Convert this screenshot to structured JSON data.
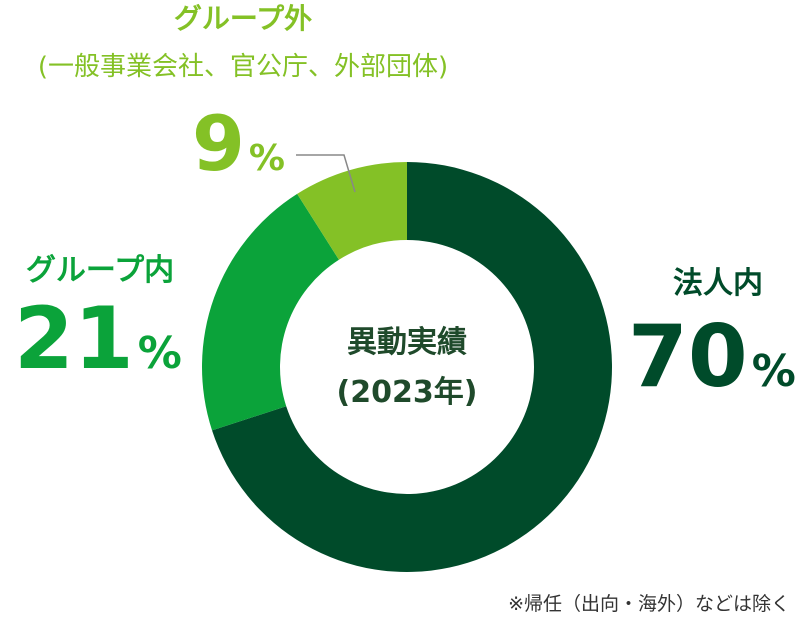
{
  "chart_data": {
    "type": "pie",
    "title": "異動実績",
    "subtitle": "(2023年)",
    "slices": [
      {
        "name": "法人内",
        "value": 70,
        "color": "#004b2a"
      },
      {
        "name": "グループ内",
        "value": 21,
        "color": "#0ba33a"
      },
      {
        "name": "グループ外",
        "sublabel": "(一般事業会社、官公庁、外部団体)",
        "value": 9,
        "color": "#84c126"
      }
    ],
    "value_suffix": "%",
    "note": "※帰任（出向・海外）などは除く"
  }
}
